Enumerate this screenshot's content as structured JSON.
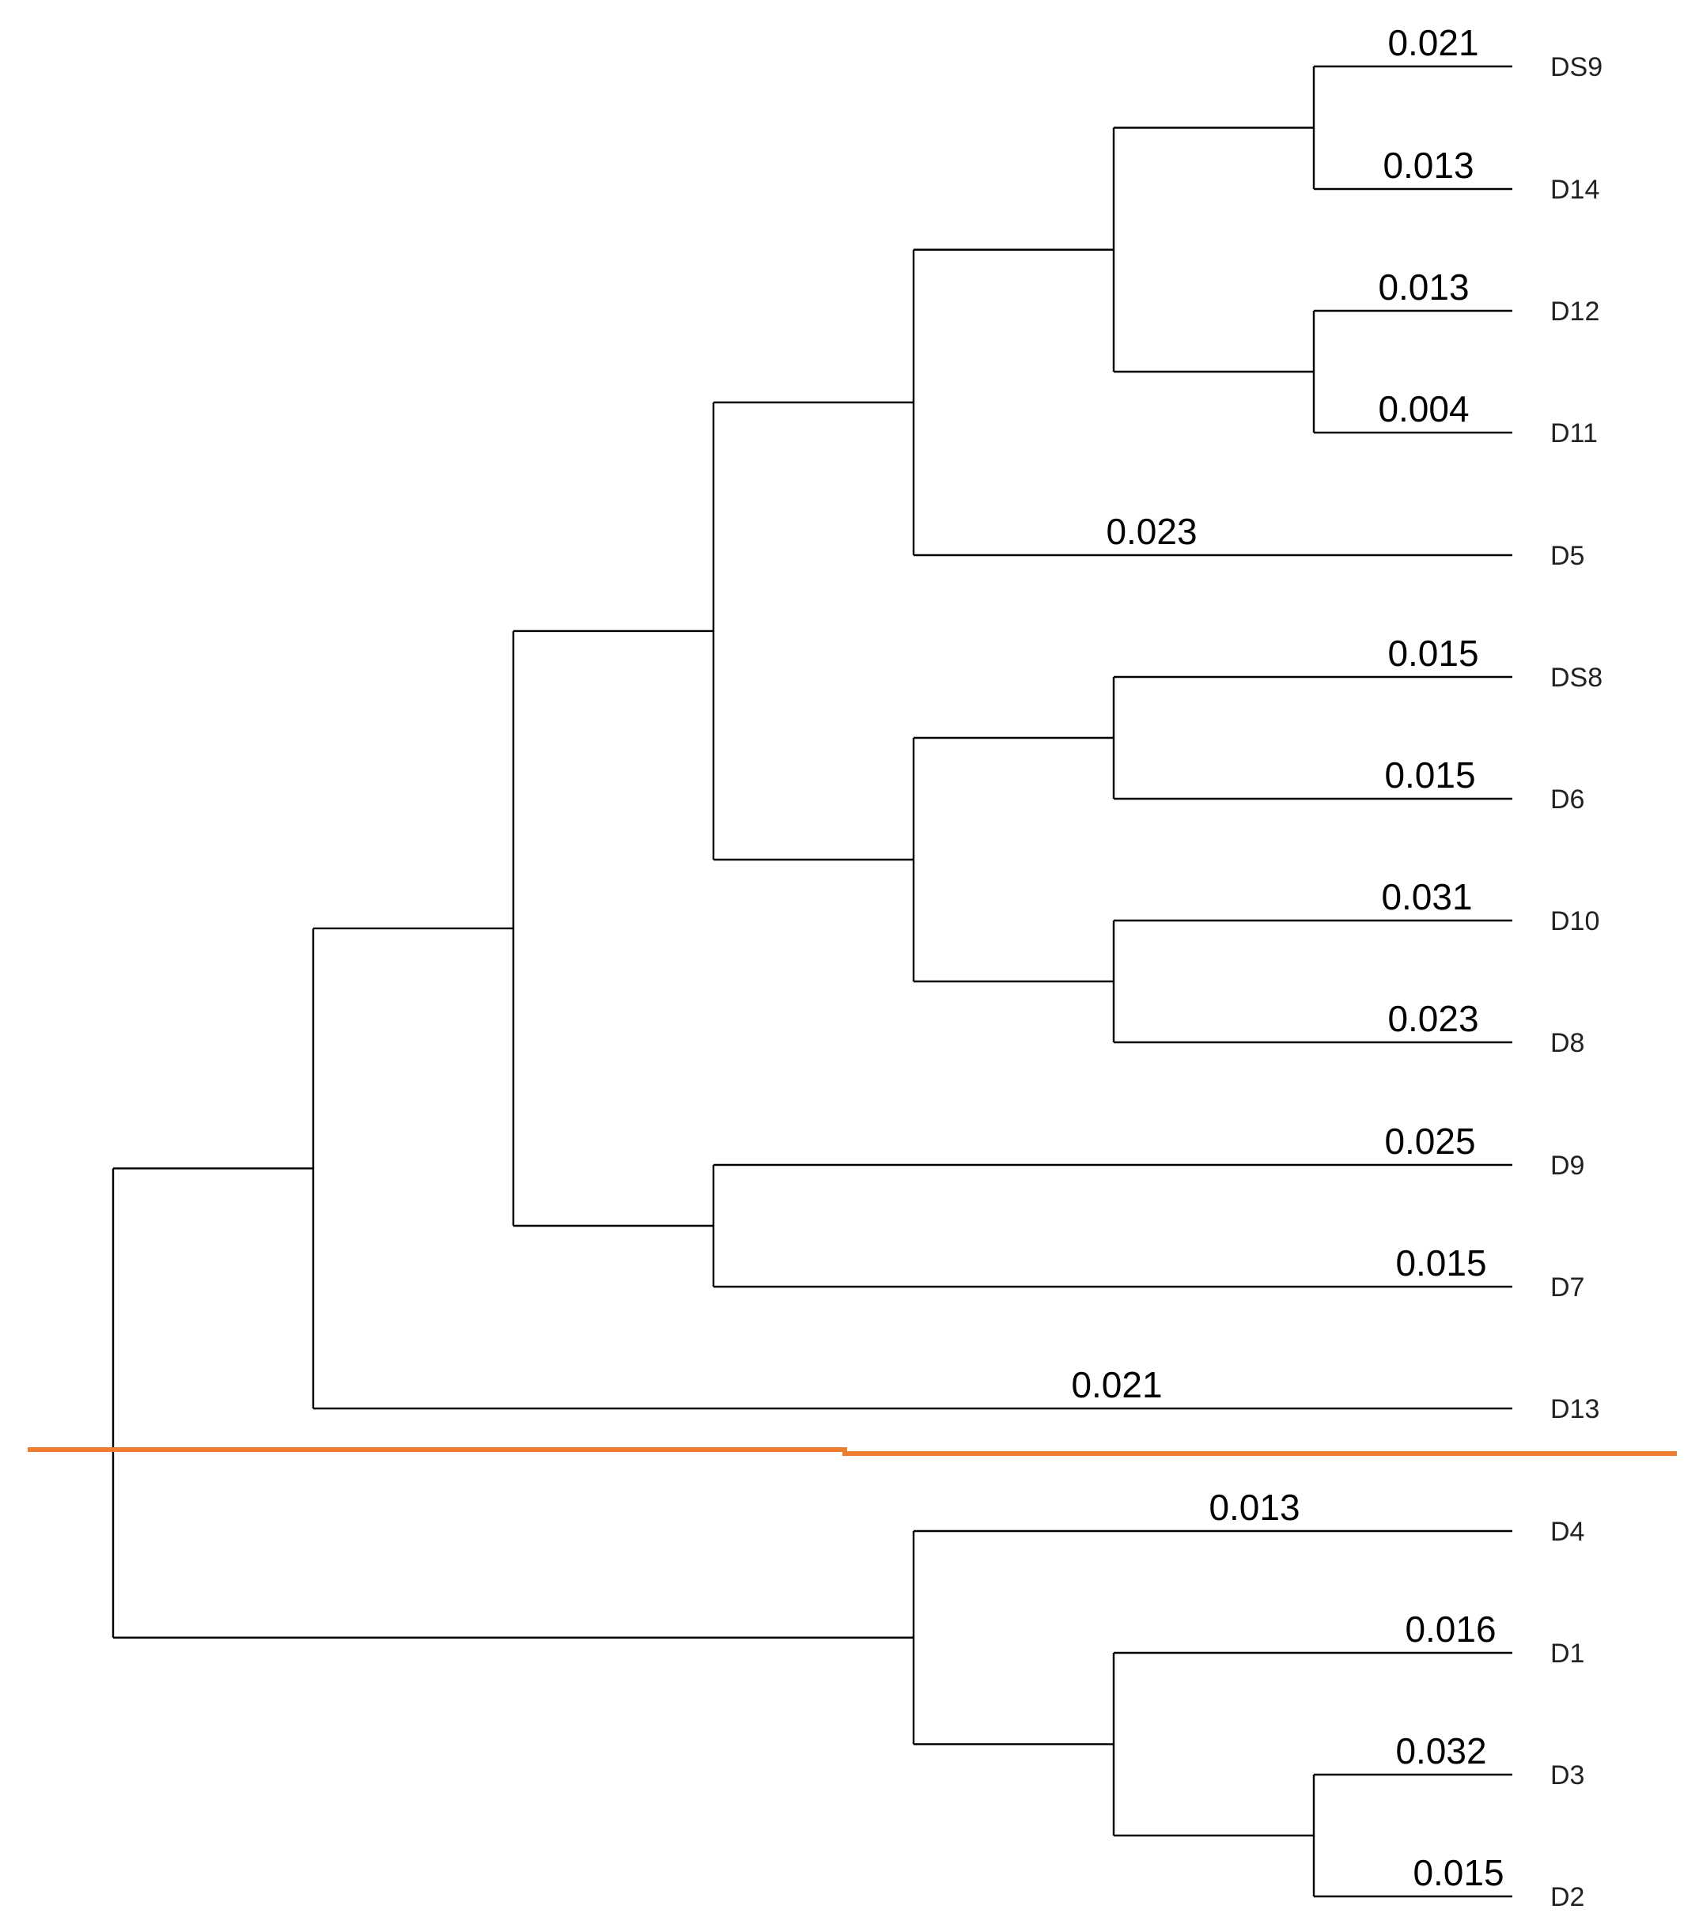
{
  "colors": {
    "branch": "#000000",
    "cut_line": "#ED7D31"
  },
  "leaves": [
    "DS9",
    "D14",
    "D12",
    "D11",
    "D5",
    "DS8",
    "D6",
    "D10",
    "D8",
    "D9",
    "D7",
    "D13",
    "D4",
    "D1",
    "D3",
    "D2"
  ],
  "leaf_distances": {
    "DS9": "0.021",
    "D14": "0.013",
    "D12": "0.013",
    "D11": "0.004",
    "D5": "0.023",
    "DS8": "0.015",
    "D6": "0.015",
    "D10": "0.031",
    "D8": "0.023",
    "D9": "0.025",
    "D7": "0.015",
    "D13": "0.021",
    "D4": "0.013",
    "D1": "0.016",
    "D3": "0.032",
    "D2": "0.015"
  },
  "tree": {
    "children": [
      {
        "children": [
          {
            "children": [
              {
                "children": [
                  {
                    "children": [
                      {
                        "children": [
                          {
                            "leaf": "DS9"
                          },
                          {
                            "leaf": "D14"
                          }
                        ]
                      },
                      {
                        "children": [
                          {
                            "leaf": "D12"
                          },
                          {
                            "leaf": "D11"
                          }
                        ]
                      }
                    ]
                  },
                  {
                    "leaf": "D5"
                  }
                ]
              },
              {
                "children": [
                  {
                    "children": [
                      {
                        "leaf": "DS8"
                      },
                      {
                        "leaf": "D6"
                      }
                    ]
                  },
                  {
                    "children": [
                      {
                        "leaf": "D10"
                      },
                      {
                        "leaf": "D8"
                      }
                    ]
                  }
                ]
              }
            ]
          },
          {
            "children": [
              {
                "leaf": "D9"
              },
              {
                "leaf": "D7"
              }
            ]
          }
        ]
      },
      {
        "leaf": "D13"
      }
    ]
  },
  "tree_lower": {
    "children": [
      {
        "leaf": "D4"
      },
      {
        "children": [
          {
            "leaf": "D1"
          },
          {
            "children": [
              {
                "leaf": "D3"
              },
              {
                "leaf": "D2"
              }
            ]
          }
        ]
      }
    ]
  }
}
